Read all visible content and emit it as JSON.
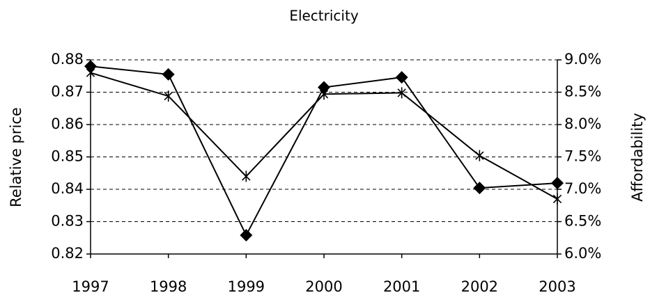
{
  "chart_data": {
    "type": "line",
    "title": "Electricity",
    "ylabel": "Relative price",
    "y2label": "Affordability",
    "categories": [
      "1997",
      "1998",
      "1999",
      "2000",
      "2001",
      "2002",
      "2003"
    ],
    "series": [
      {
        "color": "#000000",
        "marker": "diamond",
        "values": [
          0.878,
          0.8755,
          0.8258,
          0.8715,
          0.8746,
          0.8404,
          0.8419
        ]
      },
      {
        "color": "#000000",
        "marker": "asterisk",
        "axis": "y2",
        "values": [
          8.8,
          8.44,
          7.2,
          8.47,
          8.49,
          7.52,
          6.85
        ]
      }
    ],
    "ylim": [
      0.82,
      0.88
    ],
    "yticks": [
      0.82,
      0.83,
      0.84,
      0.85,
      0.86,
      0.87,
      0.88
    ],
    "y2lim": [
      6.0,
      9.0
    ],
    "y2ticks": [
      {
        "value": 6.0,
        "label": "6.0%"
      },
      {
        "value": 6.5,
        "label": "6.5%"
      },
      {
        "value": 7.0,
        "label": "7.0%"
      },
      {
        "value": 7.5,
        "label": "7.5%"
      },
      {
        "value": 8.0,
        "label": "8.0%"
      },
      {
        "value": 8.5,
        "label": "8.5%"
      },
      {
        "value": 9.0,
        "label": "9.0%"
      }
    ],
    "grid": true
  }
}
